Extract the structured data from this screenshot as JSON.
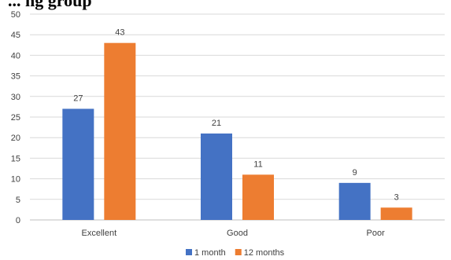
{
  "title_visible_fragment": "... ng group",
  "chart_data": {
    "type": "bar",
    "categories": [
      "Excellent",
      "Good",
      "Poor"
    ],
    "series": [
      {
        "name": "1 month",
        "values": [
          27,
          21,
          9
        ],
        "color": "#4472C4"
      },
      {
        "name": "12 months",
        "values": [
          43,
          11,
          3
        ],
        "color": "#ED7D31"
      }
    ],
    "ylim": [
      0,
      50
    ],
    "yticks": [
      0,
      5,
      10,
      15,
      20,
      25,
      30,
      35,
      40,
      45,
      50
    ],
    "grid": true,
    "legend": "bottom",
    "data_labels": true
  }
}
